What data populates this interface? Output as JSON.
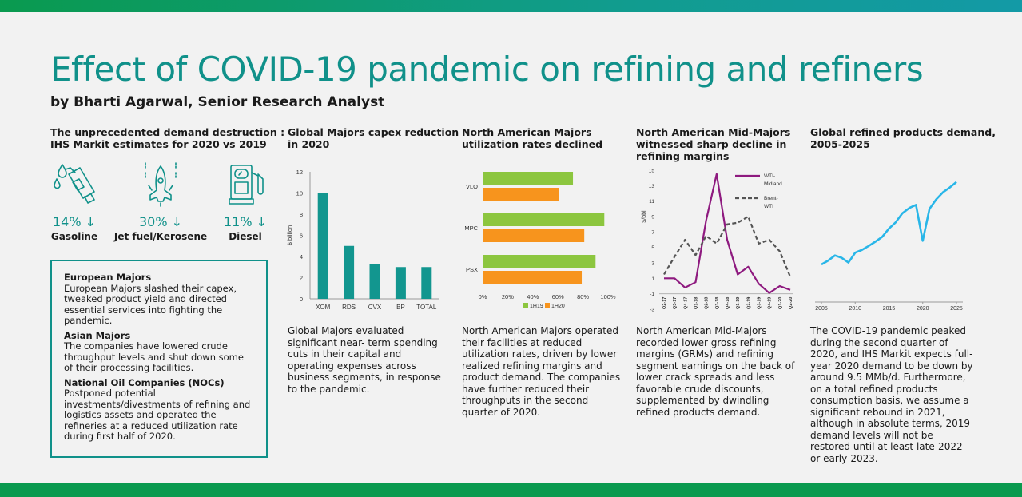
{
  "header": {
    "title": "Effect of COVID-19 pandemic on refining and refiners",
    "byline": "by Bharti Agarwal, Senior Research Analyst"
  },
  "colors": {
    "accent": "#10918a",
    "bar": "#12968f",
    "green": "#8cc63f",
    "orange": "#f7941d",
    "purple": "#8e1a7f",
    "cyan": "#29b6e8"
  },
  "col1": {
    "heading": "The unprecedented demand destruction :\nIHS Markit estimates for 2020 vs 2019",
    "stats": [
      {
        "icon": "fuel-nozzle-icon",
        "value": "14% ↓",
        "label": "Gasoline"
      },
      {
        "icon": "jet-icon",
        "value": "30% ↓",
        "label": "Jet fuel/Kerosene"
      },
      {
        "icon": "fuel-pump-icon",
        "value": "11% ↓",
        "label": "Diesel"
      }
    ],
    "box": [
      {
        "heading": "European Majors",
        "text": "European Majors slashed their capex, tweaked product yield and directed essential services into fighting the pandemic."
      },
      {
        "heading": "Asian Majors",
        "text": "The companies have lowered crude throughput levels and shut down some of their processing facilities."
      },
      {
        "heading": "National Oil Companies (NOCs)",
        "text": "Postponed potential investments/divestments of refining and logistics assets and operated the refineries at a reduced utilization rate during first half of 2020."
      }
    ]
  },
  "col2": {
    "heading": "Global Majors capex reduction\nin 2020",
    "text": "Global Majors evaluated significant near- term spending cuts in their capital and operating expenses across business segments, in response to the pandemic."
  },
  "col3": {
    "heading": "North American Majors\nutilization rates declined",
    "text": "North American Majors operated their facilities at reduced utilization rates, driven by lower realized refining margins and product demand. The companies have further reduced their throughputs in the second quarter of 2020."
  },
  "col4": {
    "heading": "North American Mid-Majors\nwitnessed sharp decline in\nrefining margins",
    "text": "North American Mid-Majors recorded lower gross refining margins (GRMs) and refining segment earnings on the back of lower crack spreads and less favorable crude discounts, supplemented by dwindling refined products demand."
  },
  "col5": {
    "heading": "Global refined products demand,\n2005-2025",
    "text": "The COVID-19 pandemic peaked during the second quarter of 2020, and IHS Markit expects full-year 2020 demand to be down by around 9.5 MMb/d. Furthermore, on a total refined products consumption basis, we assume a significant rebound in 2021, although in absolute terms, 2019 demand levels will not be restored until at least late-2022 or early-2023."
  },
  "chart_data": [
    {
      "type": "bar",
      "categories": [
        "XOM",
        "RDS",
        "CVX",
        "BP",
        "TOTAL"
      ],
      "values": [
        10,
        5,
        3.3,
        3,
        3
      ],
      "ylabel": "$ billion",
      "ylim": [
        0,
        12
      ],
      "yticks": [
        0,
        2,
        4,
        6,
        8,
        10,
        12
      ],
      "grid": false
    },
    {
      "type": "bar",
      "orientation": "horizontal",
      "categories": [
        "VLO",
        "MPC",
        "PSX"
      ],
      "series": [
        {
          "name": "1H19",
          "values": [
            72,
            97,
            90
          ]
        },
        {
          "name": "1H20",
          "values": [
            61,
            81,
            79
          ]
        }
      ],
      "xlim": [
        0,
        100
      ],
      "xticks": [
        "0%",
        "20%",
        "40%",
        "60%",
        "80%",
        "100%"
      ],
      "legend": "bottom"
    },
    {
      "type": "line",
      "x": [
        "Q2-17",
        "Q3-17",
        "Q4-17",
        "Q1-18",
        "Q2-18",
        "Q3-18",
        "Q4-18",
        "Q1-19",
        "Q2-19",
        "Q3-19",
        "Q4-19",
        "Q1-20",
        "Q2-20"
      ],
      "series": [
        {
          "name": "WTI-Midland",
          "values": [
            1,
            1,
            -0.2,
            0.5,
            8.5,
            14.5,
            6,
            1.5,
            2.5,
            0.3,
            -0.9,
            0,
            -0.5
          ]
        },
        {
          "name": "Brent-WTI",
          "values": [
            1.5,
            3.8,
            6,
            4,
            6.5,
            5.5,
            8,
            8.2,
            9,
            5.5,
            6,
            4.5,
            1.2
          ]
        }
      ],
      "ylabel": "$/bbl",
      "ylim": [
        -3,
        15
      ],
      "yticks": [
        -3,
        -1,
        1,
        3,
        5,
        7,
        9,
        11,
        13,
        15
      ],
      "legend": "right"
    },
    {
      "type": "line",
      "x": [
        2005,
        2006,
        2007,
        2008,
        2009,
        2010,
        2011,
        2012,
        2013,
        2014,
        2015,
        2016,
        2017,
        2018,
        2019,
        2020,
        2021,
        2022,
        2023,
        2024,
        2025
      ],
      "series": [
        {
          "values": [
            84.5,
            85.5,
            86.8,
            86.2,
            85,
            87.5,
            88.2,
            89.2,
            90.3,
            91.5,
            93.6,
            95.2,
            97.5,
            98.8,
            99.6,
            90.5,
            98.6,
            101,
            102.8,
            104,
            105.4
          ]
        }
      ],
      "xticks": [
        2005,
        2010,
        2015,
        2020,
        2025
      ],
      "ylim": [
        75,
        110
      ]
    }
  ]
}
